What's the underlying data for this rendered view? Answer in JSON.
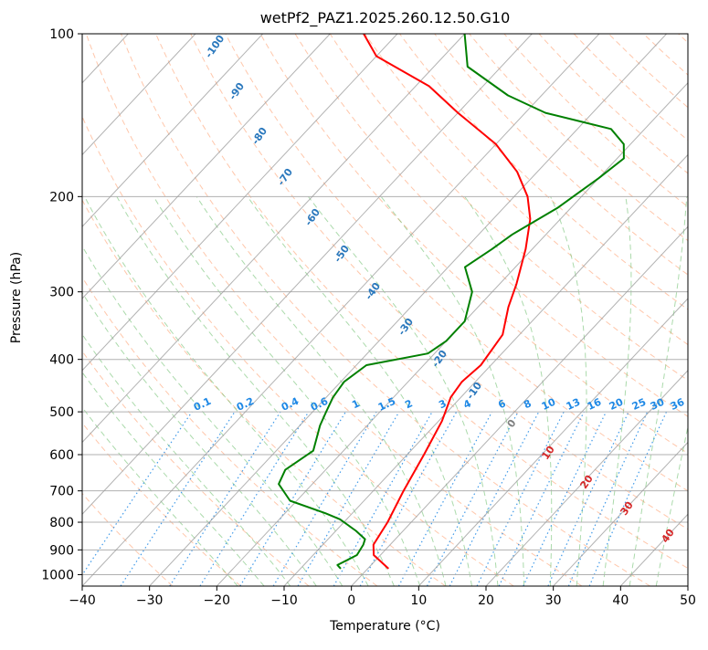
{
  "chart_data": {
    "type": "line",
    "subtype": "skew-T log-P diagram",
    "title": "wetPf2_PAZ1.2025.260.12.50.G10",
    "xlabel": "Temperature (°C)",
    "ylabel": "Pressure (hPa)",
    "xlim": [
      -40,
      50
    ],
    "ylim": [
      1050,
      100
    ],
    "y_scale": "log",
    "x_ticks": [
      -40,
      -30,
      -20,
      -10,
      0,
      10,
      20,
      30,
      40,
      50
    ],
    "y_ticks": [
      100,
      200,
      300,
      400,
      500,
      600,
      700,
      800,
      900,
      1000
    ],
    "grid": true,
    "colors": {
      "temperature": "#ff0000",
      "dewpoint": "#008000",
      "isotherm": "#999999",
      "dry_adiabat": "#ff9966",
      "moist_adiabat": "#66bb66",
      "mixing_ratio": "#1e88e5",
      "isotherm_label": "#1f6fb5",
      "upper_isotherm_label": "#2a78bd",
      "warm_label": "#d62728",
      "zero_label": "#808080"
    },
    "isotherm_labels": [
      -100,
      -90,
      -80,
      -70,
      -60,
      -50,
      -40,
      -30,
      -20,
      -10
    ],
    "zero_label": "0",
    "warm_isotherm_labels": [
      10,
      20,
      30,
      40
    ],
    "mixing_ratio_labels": [
      "0.1",
      "0.2",
      "0.4",
      "0.6",
      "1",
      "1.5",
      "2",
      "3",
      "4",
      "6",
      "8",
      "10",
      "13",
      "16",
      "20",
      "25",
      "30",
      "36"
    ],
    "series": [
      {
        "name": "Temperature",
        "points": [
          [
            3.1,
            975
          ],
          [
            -1,
            920
          ],
          [
            -2.5,
            880
          ],
          [
            -3.5,
            800
          ],
          [
            -5.5,
            700
          ],
          [
            -7.5,
            600
          ],
          [
            -9.5,
            520
          ],
          [
            -11.5,
            470
          ],
          [
            -12,
            440
          ],
          [
            -11.5,
            410
          ],
          [
            -12.5,
            360
          ],
          [
            -15.5,
            320
          ],
          [
            -17.5,
            290
          ],
          [
            -21,
            250
          ],
          [
            -24.5,
            220
          ],
          [
            -28,
            200
          ],
          [
            -33,
            180
          ],
          [
            -40,
            160
          ],
          [
            -50,
            140
          ],
          [
            -58,
            125
          ],
          [
            -70,
            110
          ],
          [
            -75,
            100
          ]
        ]
      },
      {
        "name": "Dewpoint",
        "points": [
          [
            -4,
            975
          ],
          [
            -5,
            960
          ],
          [
            -3.5,
            920
          ],
          [
            -4,
            880
          ],
          [
            -4.5,
            860
          ],
          [
            -7,
            830
          ],
          [
            -11,
            790
          ],
          [
            -14,
            770
          ],
          [
            -21,
            730
          ],
          [
            -25,
            680
          ],
          [
            -26,
            640
          ],
          [
            -24.5,
            590
          ],
          [
            -27,
            530
          ],
          [
            -28,
            500
          ],
          [
            -29,
            470
          ],
          [
            -29.5,
            440
          ],
          [
            -28.5,
            410
          ],
          [
            -21,
            390
          ],
          [
            -20,
            370
          ],
          [
            -20,
            340
          ],
          [
            -23,
            300
          ],
          [
            -27.5,
            270
          ],
          [
            -26,
            250
          ],
          [
            -25,
            235
          ],
          [
            -22,
            210
          ],
          [
            -20,
            185
          ],
          [
            -19,
            170
          ],
          [
            -21,
            160
          ],
          [
            -25,
            150
          ],
          [
            -37,
            140
          ],
          [
            -45,
            130
          ],
          [
            -55,
            115
          ],
          [
            -60,
            100
          ]
        ]
      }
    ]
  }
}
